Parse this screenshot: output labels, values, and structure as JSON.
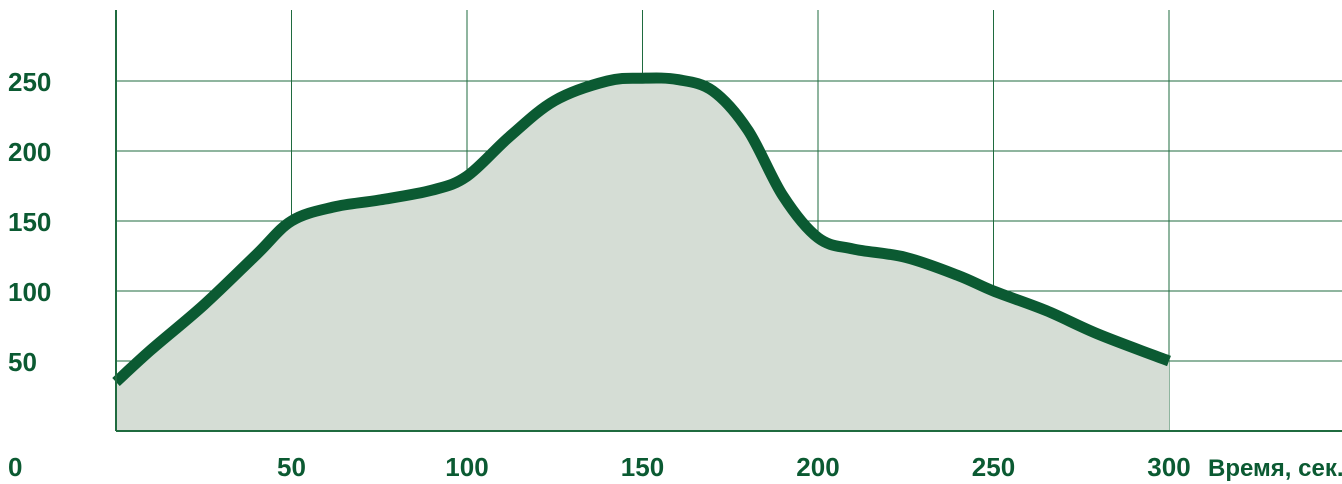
{
  "chart_data": {
    "type": "area",
    "title": "",
    "xlabel": "Время, сек.",
    "ylabel": "",
    "xlim": [
      0,
      300
    ],
    "ylim": [
      0,
      250
    ],
    "x_ticks": [
      50,
      100,
      150,
      200,
      250,
      300
    ],
    "y_ticks": [
      50,
      100,
      150,
      200,
      250
    ],
    "origin_label": "0",
    "grid": true,
    "colors": {
      "line": "#0b5a32",
      "fill": "#d5ddd5",
      "grid": "#1f6b3f",
      "text": "#0b5a32"
    },
    "series": [
      {
        "x": [
          0,
          10,
          25,
          40,
          50,
          62,
          75,
          90,
          100,
          112,
          125,
          140,
          150,
          160,
          170,
          180,
          190,
          200,
          210,
          225,
          240,
          250,
          265,
          280,
          300
        ],
        "y": [
          35,
          58,
          90,
          126,
          150,
          160,
          165,
          172,
          182,
          210,
          236,
          250,
          252,
          251,
          243,
          215,
          168,
          138,
          130,
          124,
          111,
          100,
          86,
          69,
          50
        ]
      }
    ]
  }
}
